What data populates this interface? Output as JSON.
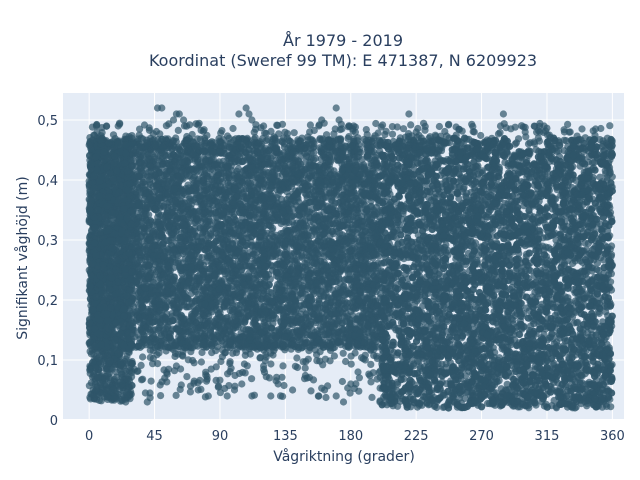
{
  "chart_data": {
    "type": "scatter",
    "title_line1": "År 1979 - 2019",
    "title_line2": "Koordinat (Sweref 99 TM): E 471387, N 6209923",
    "xlabel": "Vågriktning (grader)",
    "ylabel": "Signifikant våghöjd (m)",
    "xlim": [
      -18,
      368
    ],
    "ylim": [
      0,
      0.545
    ],
    "x_ticks": [
      0,
      45,
      90,
      135,
      180,
      225,
      270,
      315,
      360
    ],
    "x_tick_labels": [
      "0",
      "45",
      "90",
      "135",
      "180",
      "225",
      "270",
      "315",
      "360"
    ],
    "y_ticks": [
      0,
      0.1,
      0.2,
      0.3,
      0.4,
      0.5
    ],
    "y_tick_labels": [
      "0",
      "0,1",
      "0,2",
      "0,3",
      "0,4",
      "0,5"
    ],
    "grid": true,
    "legend": "none",
    "marker_color": "#2f5569",
    "plot_background": "#e5ecf6",
    "point_summary": "Dense band of points covering all directions 0–360°; wave heights mostly 0.12–0.47 m for 0–200° and 0.02–0.47 m for 200–360°",
    "dense_regions": [
      {
        "x_range": [
          0,
          200
        ],
        "y_range": [
          0.12,
          0.47
        ]
      },
      {
        "x_range": [
          200,
          360
        ],
        "y_range": [
          0.02,
          0.47
        ]
      },
      {
        "x_range": [
          0,
          30
        ],
        "y_range": [
          0.03,
          0.47
        ]
      }
    ],
    "outliers": [
      {
        "x": 47,
        "y": 0.52
      },
      {
        "x": 50,
        "y": 0.52
      },
      {
        "x": 58,
        "y": 0.5
      },
      {
        "x": 60,
        "y": 0.51
      },
      {
        "x": 62,
        "y": 0.51
      },
      {
        "x": 65,
        "y": 0.5
      },
      {
        "x": 103,
        "y": 0.51
      },
      {
        "x": 108,
        "y": 0.52
      },
      {
        "x": 110,
        "y": 0.51
      },
      {
        "x": 112,
        "y": 0.5
      },
      {
        "x": 120,
        "y": 0.49
      },
      {
        "x": 158,
        "y": 0.49
      },
      {
        "x": 160,
        "y": 0.5
      },
      {
        "x": 170,
        "y": 0.52
      },
      {
        "x": 172,
        "y": 0.5
      },
      {
        "x": 182,
        "y": 0.49
      },
      {
        "x": 220,
        "y": 0.51
      },
      {
        "x": 225,
        "y": 0.48
      },
      {
        "x": 265,
        "y": 0.48
      },
      {
        "x": 283,
        "y": 0.49
      },
      {
        "x": 285,
        "y": 0.51
      },
      {
        "x": 300,
        "y": 0.48
      },
      {
        "x": 310,
        "y": 0.48
      },
      {
        "x": 327,
        "y": 0.48
      },
      {
        "x": 5,
        "y": 0.49
      },
      {
        "x": 12,
        "y": 0.49
      },
      {
        "x": 20,
        "y": 0.49
      },
      {
        "x": 40,
        "y": 0.03
      },
      {
        "x": 52,
        "y": 0.07
      },
      {
        "x": 60,
        "y": 0.09
      },
      {
        "x": 75,
        "y": 0.05
      },
      {
        "x": 82,
        "y": 0.04
      },
      {
        "x": 95,
        "y": 0.04
      },
      {
        "x": 100,
        "y": 0.05
      },
      {
        "x": 105,
        "y": 0.06
      },
      {
        "x": 112,
        "y": 0.04
      },
      {
        "x": 120,
        "y": 0.09
      },
      {
        "x": 125,
        "y": 0.04
      },
      {
        "x": 130,
        "y": 0.06
      },
      {
        "x": 140,
        "y": 0.05
      },
      {
        "x": 150,
        "y": 0.07
      },
      {
        "x": 158,
        "y": 0.04
      },
      {
        "x": 162,
        "y": 0.05
      },
      {
        "x": 170,
        "y": 0.04
      },
      {
        "x": 175,
        "y": 0.03
      },
      {
        "x": 180,
        "y": 0.06
      },
      {
        "x": 185,
        "y": 0.08
      },
      {
        "x": 190,
        "y": 0.1
      }
    ]
  }
}
